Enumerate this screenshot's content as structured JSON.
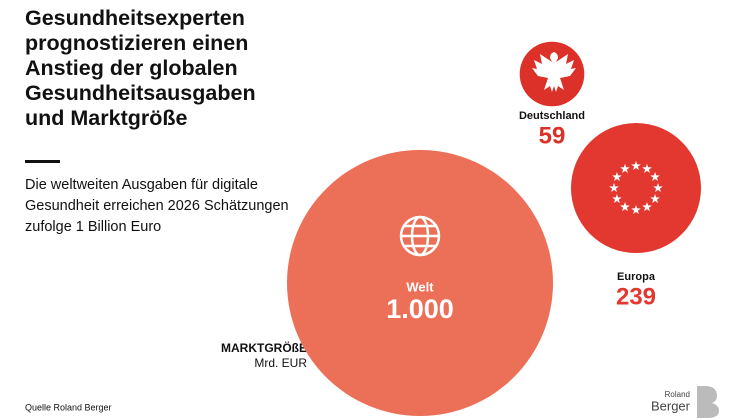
{
  "chart_data": {
    "type": "bubble",
    "title": "Gesundheitsexperten prognostizieren einen Anstieg der globalen Gesundheitsausgaben und Marktgröße",
    "subtitle": "Die weltweiten Ausgaben für digitale Gesundheit erreichen 2026 Schätzungen zufolge 1 Billion Euro",
    "size_label": "MARKTGRÖßE",
    "unit": "Mrd. EUR",
    "categories": [
      "Welt",
      "Europa",
      "Deutschland"
    ],
    "values": [
      1000,
      239,
      59
    ],
    "value_labels": [
      "1.000",
      "239",
      "59"
    ],
    "colors": [
      "#ec7058",
      "#e2382f",
      "#dc3128"
    ],
    "source": "Quelle Roland Berger",
    "logo": [
      "Roland",
      "Berger"
    ]
  }
}
